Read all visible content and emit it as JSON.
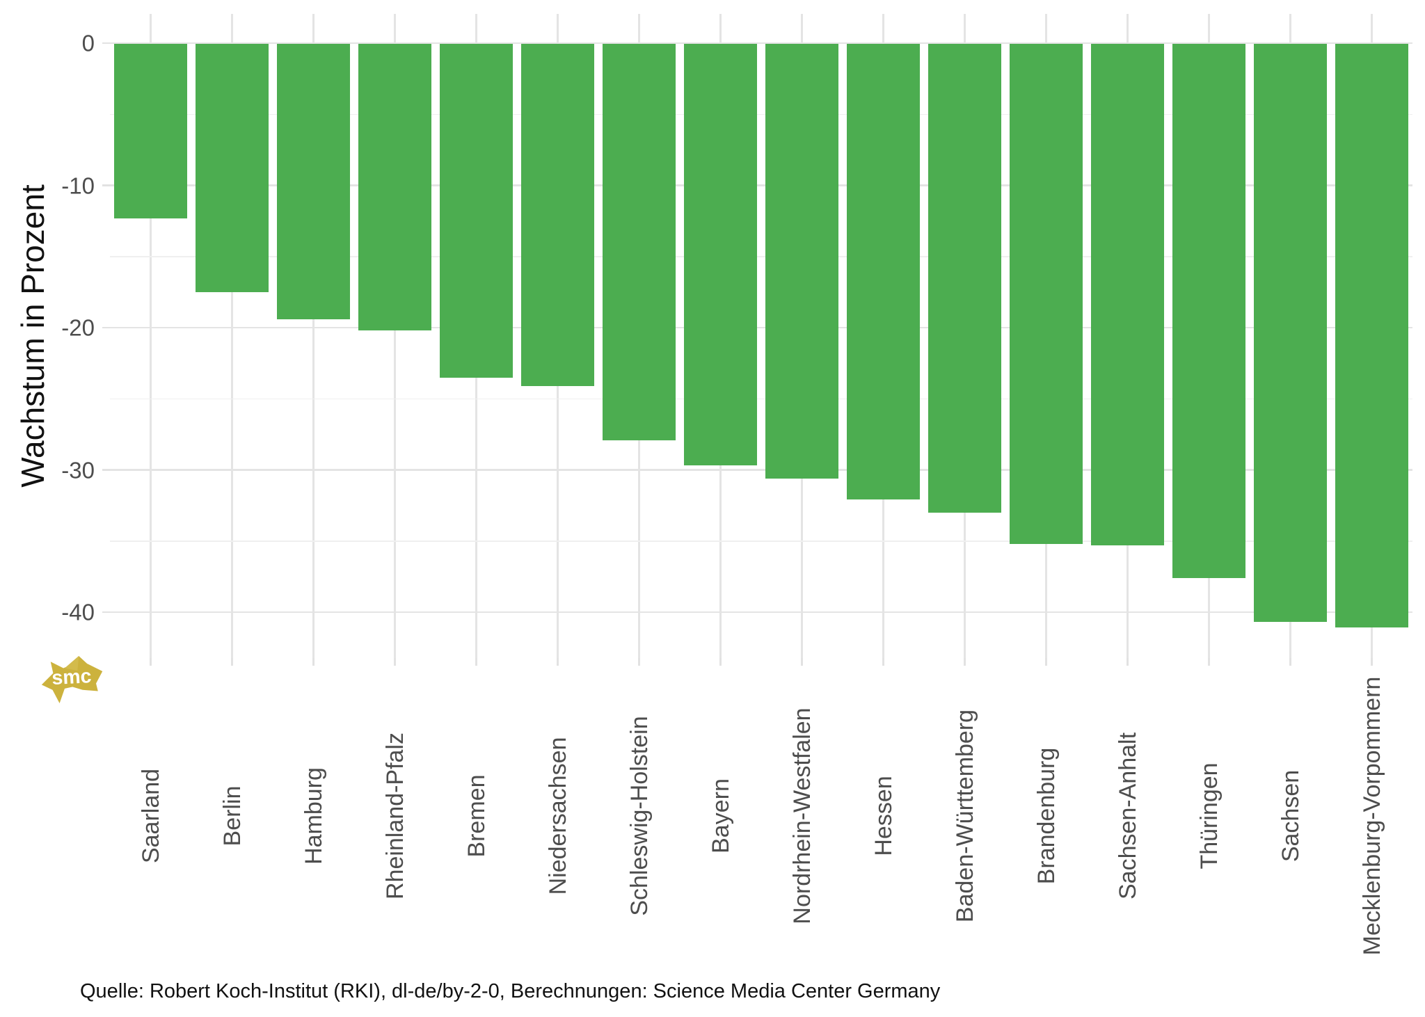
{
  "chart_data": {
    "type": "bar",
    "orientation": "vertical",
    "title": "",
    "xlabel": "",
    "ylabel": "Wachstum in Prozent",
    "categories": [
      "Saarland",
      "Berlin",
      "Hamburg",
      "Rheinland-Pfalz",
      "Bremen",
      "Niedersachsen",
      "Schleswig-Holstein",
      "Bayern",
      "Nordrhein-Westfalen",
      "Hessen",
      "Baden-Württemberg",
      "Brandenburg",
      "Sachsen-Anhalt",
      "Thüringen",
      "Sachsen",
      "Mecklenburg-Vorpommern"
    ],
    "values": [
      -12.3,
      -17.5,
      -19.4,
      -20.2,
      -23.5,
      -24.1,
      -27.9,
      -29.7,
      -30.6,
      -32.1,
      -33.0,
      -35.2,
      -35.3,
      -37.6,
      -40.7,
      -41.1
    ],
    "unit": "Prozent",
    "ylim": [
      -43.3,
      2.1
    ],
    "yticks_major": [
      0,
      -10,
      -20,
      -30,
      -40
    ],
    "ytick_labels": [
      "0",
      "-10",
      "-20",
      "-30",
      "-40"
    ],
    "yticks_minor": [
      -5,
      -15,
      -25,
      -35
    ],
    "grid": true,
    "legend_position": "none",
    "bar_color": "#4cad50"
  },
  "caption": {
    "text": "Quelle: Robert Koch-Institut (RKI), dl-de/by-2-0, Berechnungen: Science Media Center Germany"
  },
  "watermark": {
    "text": "smc",
    "color": "#ccb23d"
  },
  "colors": {
    "background": "#ffffff",
    "grid_major": "#e4e4e4",
    "grid_minor": "#efefef",
    "tick_label": "#4d4d4d",
    "axis_title": "#111111"
  }
}
